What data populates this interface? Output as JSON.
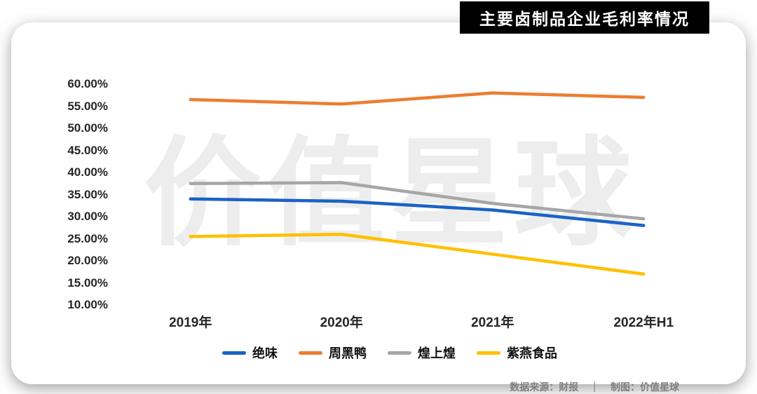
{
  "title": "主要卤制品企业毛利率情况",
  "watermark": "价值星球",
  "footer": {
    "source": "数据来源：财报",
    "separator": "｜",
    "credit": "制图：价值星球"
  },
  "colors": {
    "title_bg": "#000000",
    "title_text": "#ffffff",
    "tick_text": "#262626",
    "footer_text": "#808080",
    "watermark": "#ededed"
  },
  "chart_data": {
    "type": "line",
    "categories": [
      "2019年",
      "2020年",
      "2021年",
      "2022年H1"
    ],
    "series": [
      {
        "name": "绝味",
        "color": "#1b62c4",
        "values": [
          34.0,
          33.5,
          31.5,
          28.0
        ]
      },
      {
        "name": "周黑鸭",
        "color": "#ed7d31",
        "values": [
          56.5,
          55.5,
          58.0,
          57.0
        ]
      },
      {
        "name": "煌上煌",
        "color": "#a6a6a6",
        "values": [
          37.5,
          37.7,
          33.0,
          29.5
        ]
      },
      {
        "name": "紫燕食品",
        "color": "#ffc000",
        "values": [
          25.5,
          26.0,
          21.5,
          17.0
        ]
      }
    ],
    "y_axis": {
      "min": 10,
      "max": 60,
      "step": 5,
      "tick_labels": [
        "60.00%",
        "55.00%",
        "50.00%",
        "45.00%",
        "40.00%",
        "35.00%",
        "30.00%",
        "25.00%",
        "20.00%",
        "15.00%",
        "10.00%"
      ]
    },
    "xlabel": "",
    "ylabel": "",
    "grid": false,
    "legend_position": "bottom"
  }
}
